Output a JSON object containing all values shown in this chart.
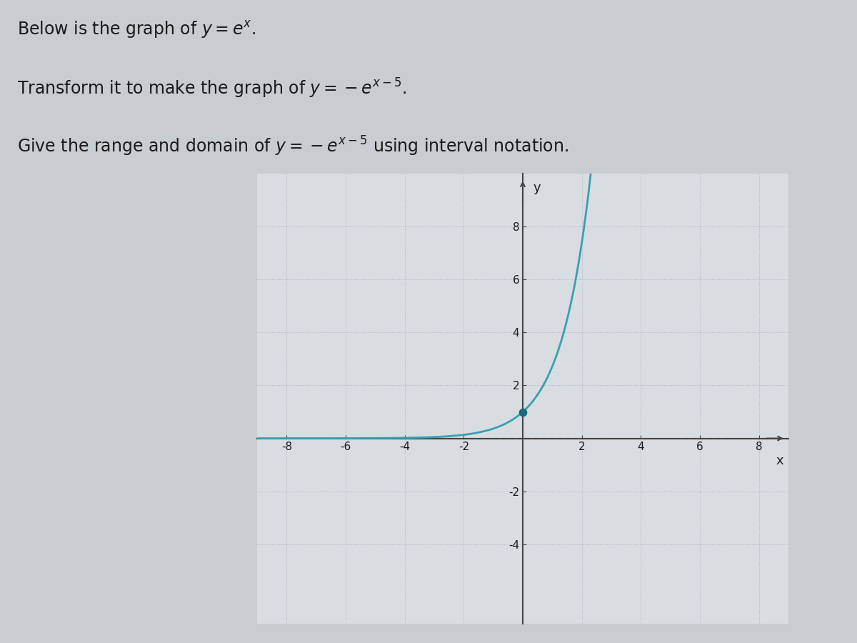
{
  "title_lines": [
    "Below is the graph of $y = e^x$.",
    "Transform it to make the graph of $y = -e^{x-5}$.",
    "Give the range and domain of $y = -e^{x-5}$ using interval notation."
  ],
  "x_min": -9,
  "x_max": 9,
  "y_min": -7,
  "y_max": 10,
  "x_ticks": [
    -8,
    -6,
    -4,
    -2,
    2,
    4,
    6,
    8
  ],
  "y_ticks": [
    -4,
    -2,
    2,
    4,
    6,
    8
  ],
  "curve_color": "#3a9faf",
  "dot_x": 0,
  "dot_y": 1,
  "dot_color": "#1a6a7a",
  "dot_size": 55,
  "curve_linewidth": 2.0,
  "grid_color": "#b0b8c0",
  "grid_linestyle": ":",
  "plot_bg_color": "#d8dde2",
  "axis_color": "#444444",
  "asymptote_color": "#555555",
  "asymptote_linestyle": "--",
  "asymptote_linewidth": 1.5,
  "title_fontsize": 17,
  "tick_fontsize": 11,
  "label_fontsize": 13,
  "fig_bg_color": "#c8cdd2",
  "text_color": "#1a1a1a"
}
